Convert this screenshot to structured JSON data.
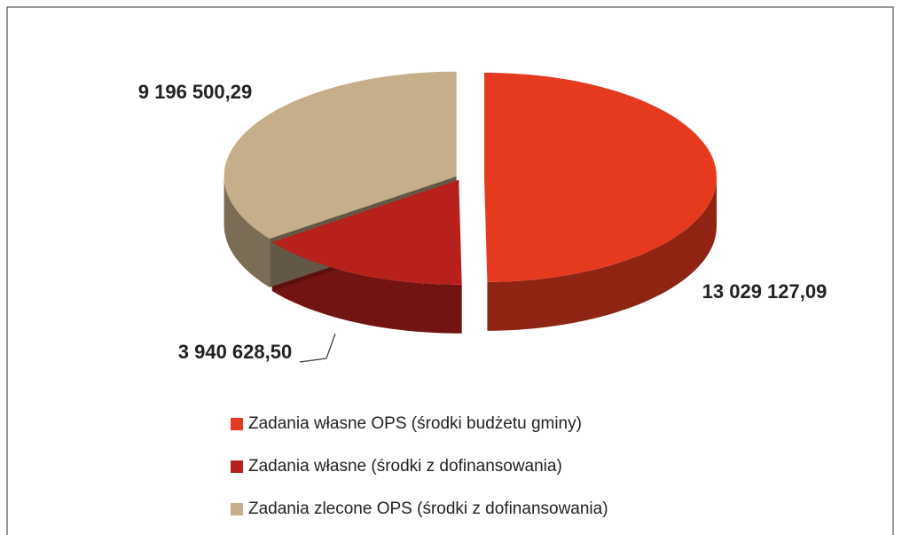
{
  "chart_data": {
    "type": "pie3d",
    "categories": [
      "Zadania własne OPS (środki budżetu gminy)",
      "Zadania własne (środki z dofinansowania)",
      "Zadania zlecone OPS (środki z dofinansowania)"
    ],
    "values": [
      13029127.09,
      3940628.5,
      9196500.29
    ],
    "value_labels": [
      "13 029 127,09",
      "3 940 628,50",
      "9 196 500,29"
    ],
    "colors": [
      "#e63a1e",
      "#b8201b",
      "#c6ae8a"
    ]
  }
}
